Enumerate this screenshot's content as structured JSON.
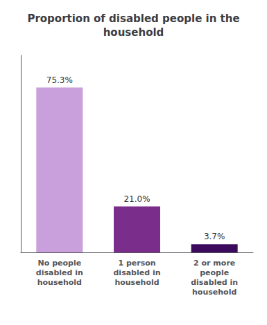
{
  "chart_data": {
    "type": "bar",
    "title": "Proportion of disabled people in the\nhousehold",
    "categories": [
      "No people\ndisabled in\nhousehold",
      "1 person\ndisabled in\nhousehold",
      "2 or more\npeople\ndisabled in\nhousehold"
    ],
    "values": [
      75.3,
      21.0,
      3.7
    ],
    "value_labels": [
      "75.3%",
      "21.0%",
      "3.7%"
    ],
    "colors": [
      "#c9a0dc",
      "#7b2d8b",
      "#3b0a5c"
    ],
    "ylim": [
      0,
      90
    ],
    "grid": false,
    "tick_labels": "x",
    "data_labels": true
  }
}
